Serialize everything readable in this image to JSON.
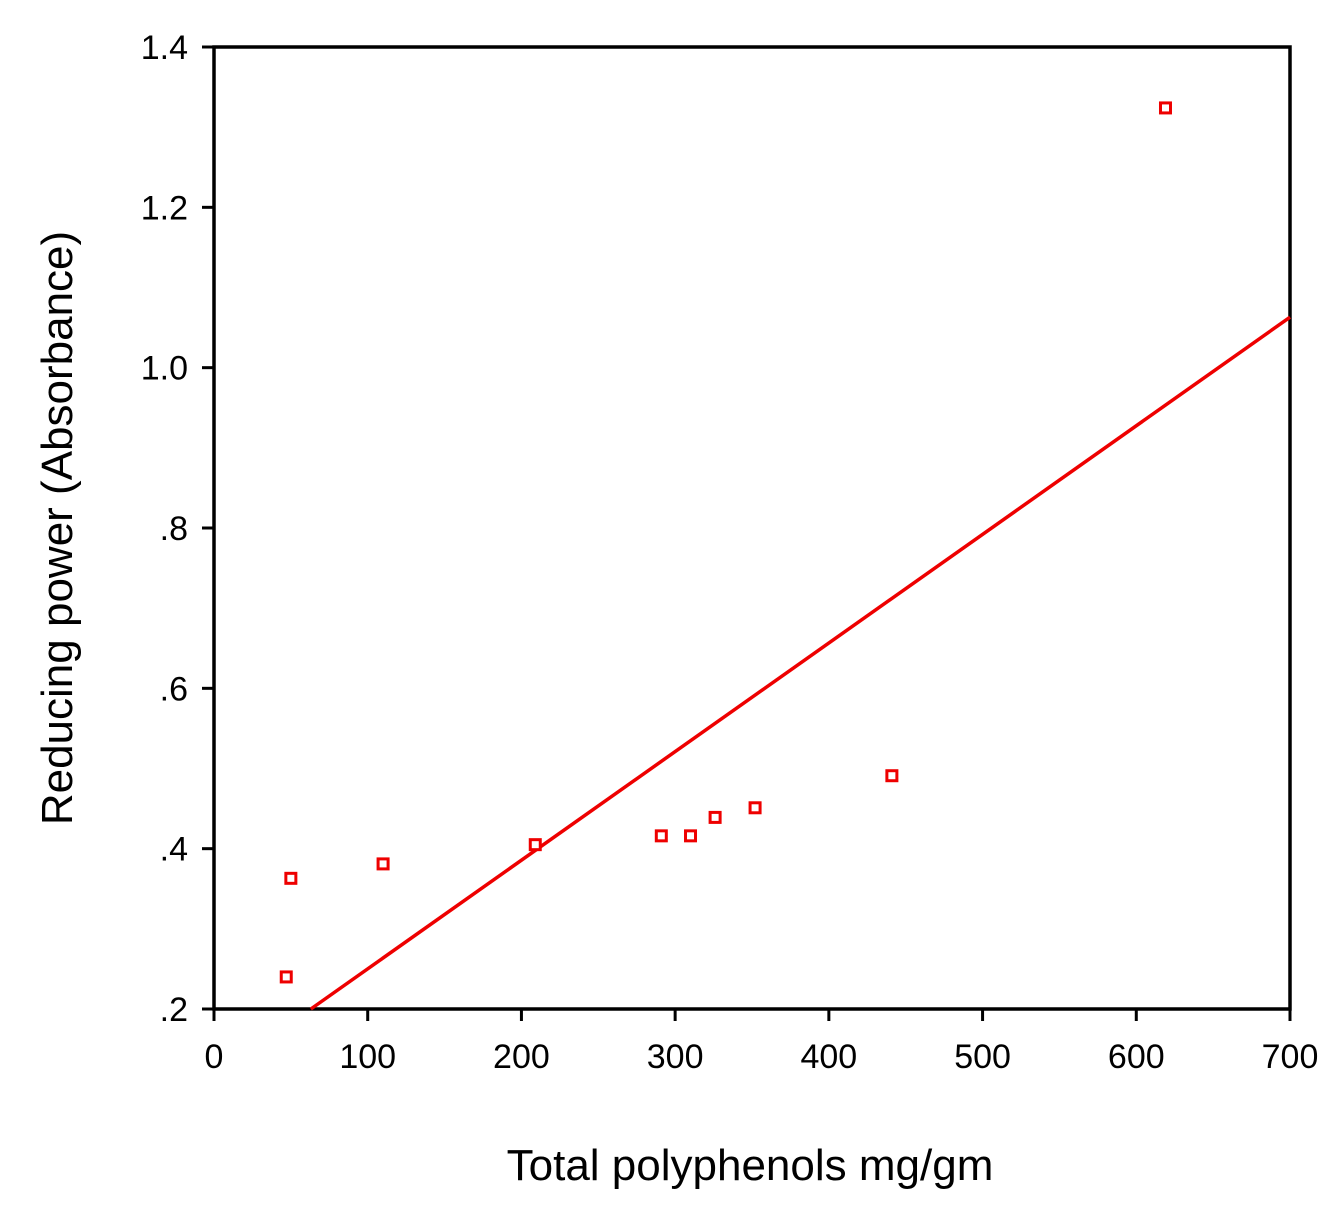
{
  "chart_data": {
    "type": "scatter",
    "title": "",
    "xlabel": "Total polyphenols mg/gm",
    "ylabel": "Reducing power (Absorbance)",
    "xlim": [
      0,
      700
    ],
    "ylim": [
      0.2,
      1.4
    ],
    "x_ticks": [
      0,
      100,
      200,
      300,
      400,
      500,
      600,
      700
    ],
    "x_tick_labels": [
      "0",
      "100",
      "200",
      "300",
      "400",
      "500",
      "600",
      "700"
    ],
    "y_ticks": [
      0.2,
      0.4,
      0.6,
      0.8,
      1.0,
      1.2,
      1.4
    ],
    "y_tick_labels": [
      ".2",
      ".4",
      ".6",
      ".8",
      "1.0",
      "1.2",
      "1.4"
    ],
    "grid": false,
    "legend": "none",
    "marker": "hollow-square",
    "color": "#ee0000",
    "points": [
      {
        "x": 47,
        "y": 0.24
      },
      {
        "x": 50,
        "y": 0.363
      },
      {
        "x": 110,
        "y": 0.381
      },
      {
        "x": 209,
        "y": 0.405
      },
      {
        "x": 291,
        "y": 0.416
      },
      {
        "x": 310,
        "y": 0.416
      },
      {
        "x": 326,
        "y": 0.439
      },
      {
        "x": 352,
        "y": 0.451
      },
      {
        "x": 441,
        "y": 0.491
      },
      {
        "x": 619,
        "y": 1.324
      }
    ],
    "fit_line": {
      "x": [
        63,
        700
      ],
      "y": [
        0.2,
        1.063
      ]
    }
  }
}
